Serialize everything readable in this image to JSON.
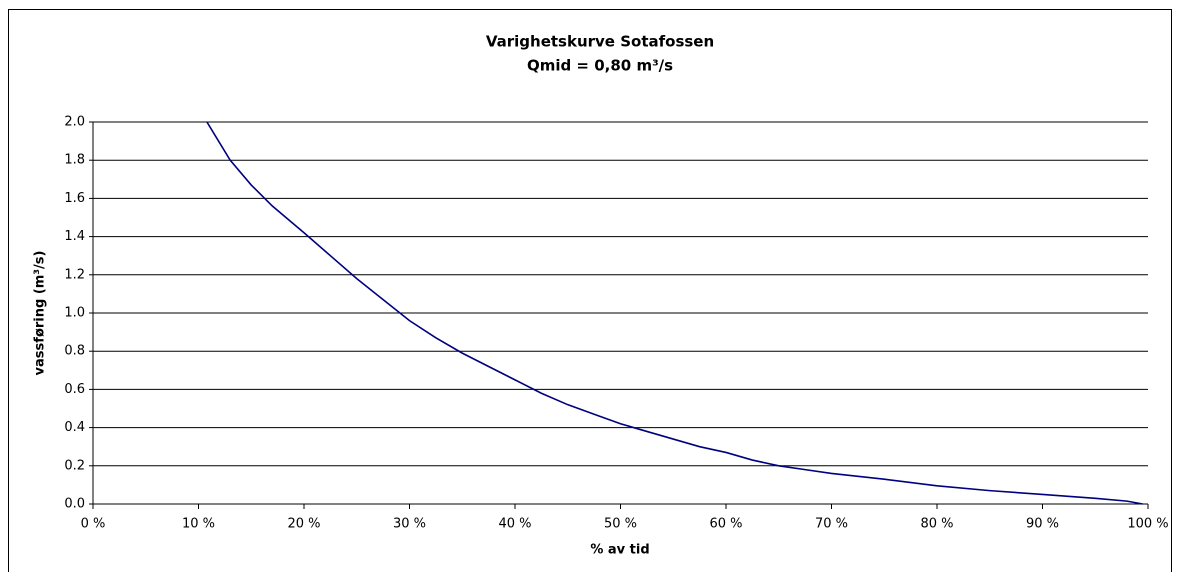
{
  "chart_data": {
    "type": "line",
    "title": "Varighetskurve Sotafossen",
    "subtitle": "Qmid = 0,80 m³/s",
    "x_label": "% av tid",
    "y_label": "vassføring (m³/s)",
    "x": [
      10.8,
      13,
      15,
      17,
      20,
      22.5,
      25,
      27.5,
      30,
      32.5,
      35,
      37.5,
      40,
      42.5,
      45,
      47.5,
      50,
      52.5,
      55,
      57.5,
      60,
      62.5,
      65,
      67.5,
      70,
      75,
      80,
      85,
      90,
      95,
      98,
      99.5
    ],
    "series": [
      {
        "color": "#000080",
        "values": [
          2.0,
          1.8,
          1.67,
          1.56,
          1.42,
          1.3,
          1.18,
          1.07,
          0.96,
          0.87,
          0.79,
          0.72,
          0.65,
          0.58,
          0.52,
          0.47,
          0.42,
          0.38,
          0.34,
          0.3,
          0.27,
          0.23,
          0.2,
          0.18,
          0.16,
          0.13,
          0.095,
          0.07,
          0.05,
          0.03,
          0.015,
          0.0
        ]
      }
    ],
    "xlim": [
      0,
      100
    ],
    "ylim": [
      0,
      2
    ],
    "xticks": [
      {
        "value": 0,
        "label": "0 %"
      },
      {
        "value": 10,
        "label": "10 %"
      },
      {
        "value": 20,
        "label": "20 %"
      },
      {
        "value": 30,
        "label": "30 %"
      },
      {
        "value": 40,
        "label": "40 %"
      },
      {
        "value": 50,
        "label": "50 %"
      },
      {
        "value": 60,
        "label": "60 %"
      },
      {
        "value": 70,
        "label": "70 %"
      },
      {
        "value": 80,
        "label": "80 %"
      },
      {
        "value": 90,
        "label": "90 %"
      },
      {
        "value": 100,
        "label": "100 %"
      }
    ],
    "yticks": [
      {
        "value": 0,
        "label": "0.0"
      },
      0.2,
      0.4,
      0.6,
      0.8,
      {
        "value": 1,
        "label": "1.0"
      },
      1.2,
      1.4,
      1.6,
      1.8,
      {
        "value": 2,
        "label": "2.0"
      }
    ],
    "grid": true
  }
}
